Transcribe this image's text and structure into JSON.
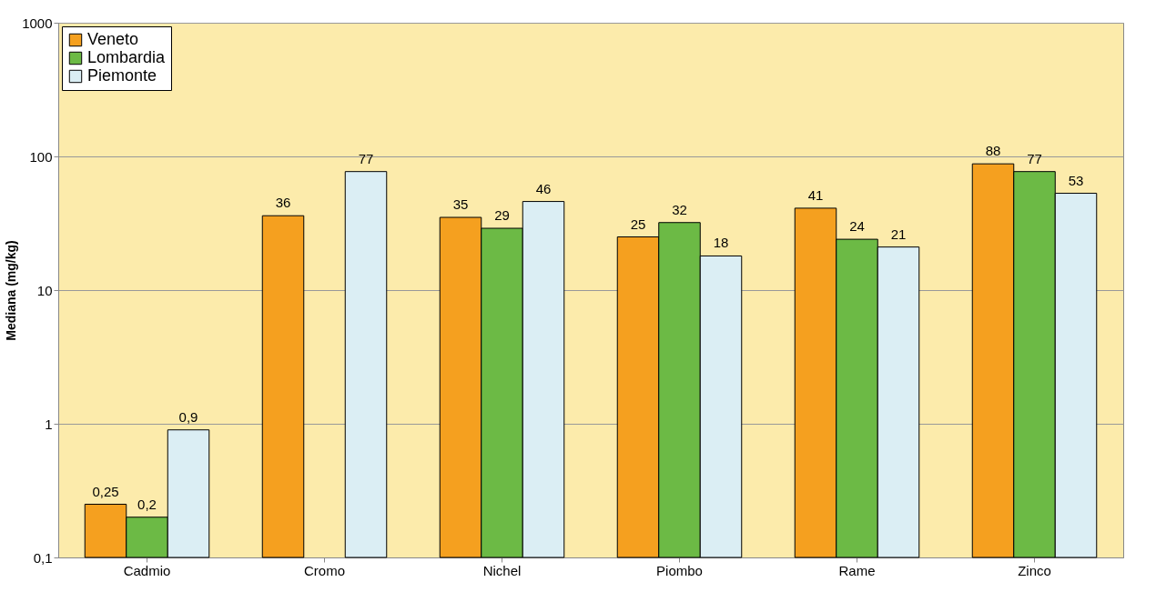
{
  "chart_data": {
    "type": "bar",
    "ylabel": "Mediana (mg/kg)",
    "categories": [
      "Cadmio",
      "Cromo",
      "Nichel",
      "Piombo",
      "Rame",
      "Zinco"
    ],
    "series": [
      {
        "name": "Veneto",
        "color": "#f5a01f",
        "values": [
          0.25,
          36,
          35,
          25,
          41,
          88
        ],
        "value_labels": [
          "0,25",
          "36",
          "35",
          "25",
          "41",
          "88"
        ]
      },
      {
        "name": "Lombardia",
        "color": "#6cba45",
        "values": [
          0.2,
          null,
          29,
          32,
          24,
          77
        ],
        "value_labels": [
          "0,2",
          null,
          "29",
          "32",
          "24",
          "77"
        ]
      },
      {
        "name": "Piemonte",
        "color": "#dbeef4",
        "values": [
          0.9,
          77,
          46,
          18,
          21,
          53
        ],
        "value_labels": [
          "0,9",
          "77",
          "46",
          "18",
          "21",
          "53"
        ]
      }
    ],
    "log": true,
    "ylim": [
      0.1,
      1000
    ],
    "yticks": [
      {
        "value": 0.1,
        "label": "0,1"
      },
      1,
      10,
      100,
      1000
    ],
    "grid": "y",
    "legend": "top left"
  }
}
